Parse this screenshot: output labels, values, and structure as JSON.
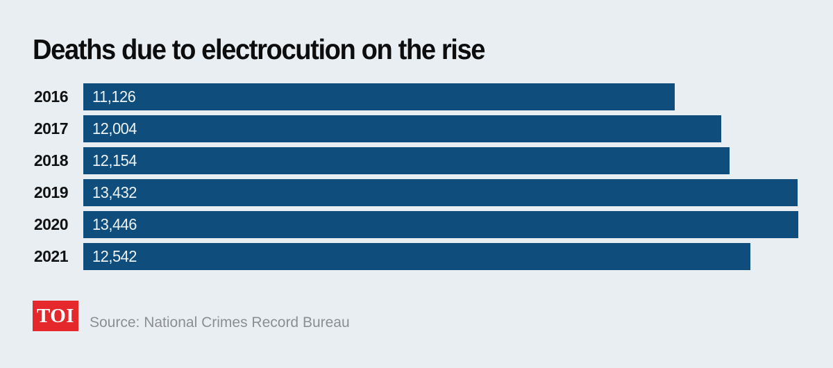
{
  "title": "Deaths due to electrocution on the rise",
  "chart_data": {
    "type": "bar",
    "orientation": "horizontal",
    "title": "Deaths due to electrocution on the rise",
    "categories": [
      "2016",
      "2017",
      "2018",
      "2019",
      "2020",
      "2021"
    ],
    "values": [
      11126,
      12004,
      12154,
      13432,
      13446,
      12542
    ],
    "value_labels": [
      "11,126",
      "12,004",
      "12,154",
      "13,432",
      "13,446",
      "12,542"
    ],
    "xlabel": "",
    "ylabel": "",
    "xlim": [
      0,
      14100
    ],
    "grid": false,
    "legend": false,
    "bar_color": "#0e4d7c",
    "value_label_color": "#eef3f6",
    "category_label_color": "#111111",
    "background_color": "#e9eef2"
  },
  "footer": {
    "logo_text": "TOI",
    "logo_bg": "#e4282c",
    "logo_text_color": "#ffffff",
    "source": "Source: National Crimes Record Bureau"
  }
}
